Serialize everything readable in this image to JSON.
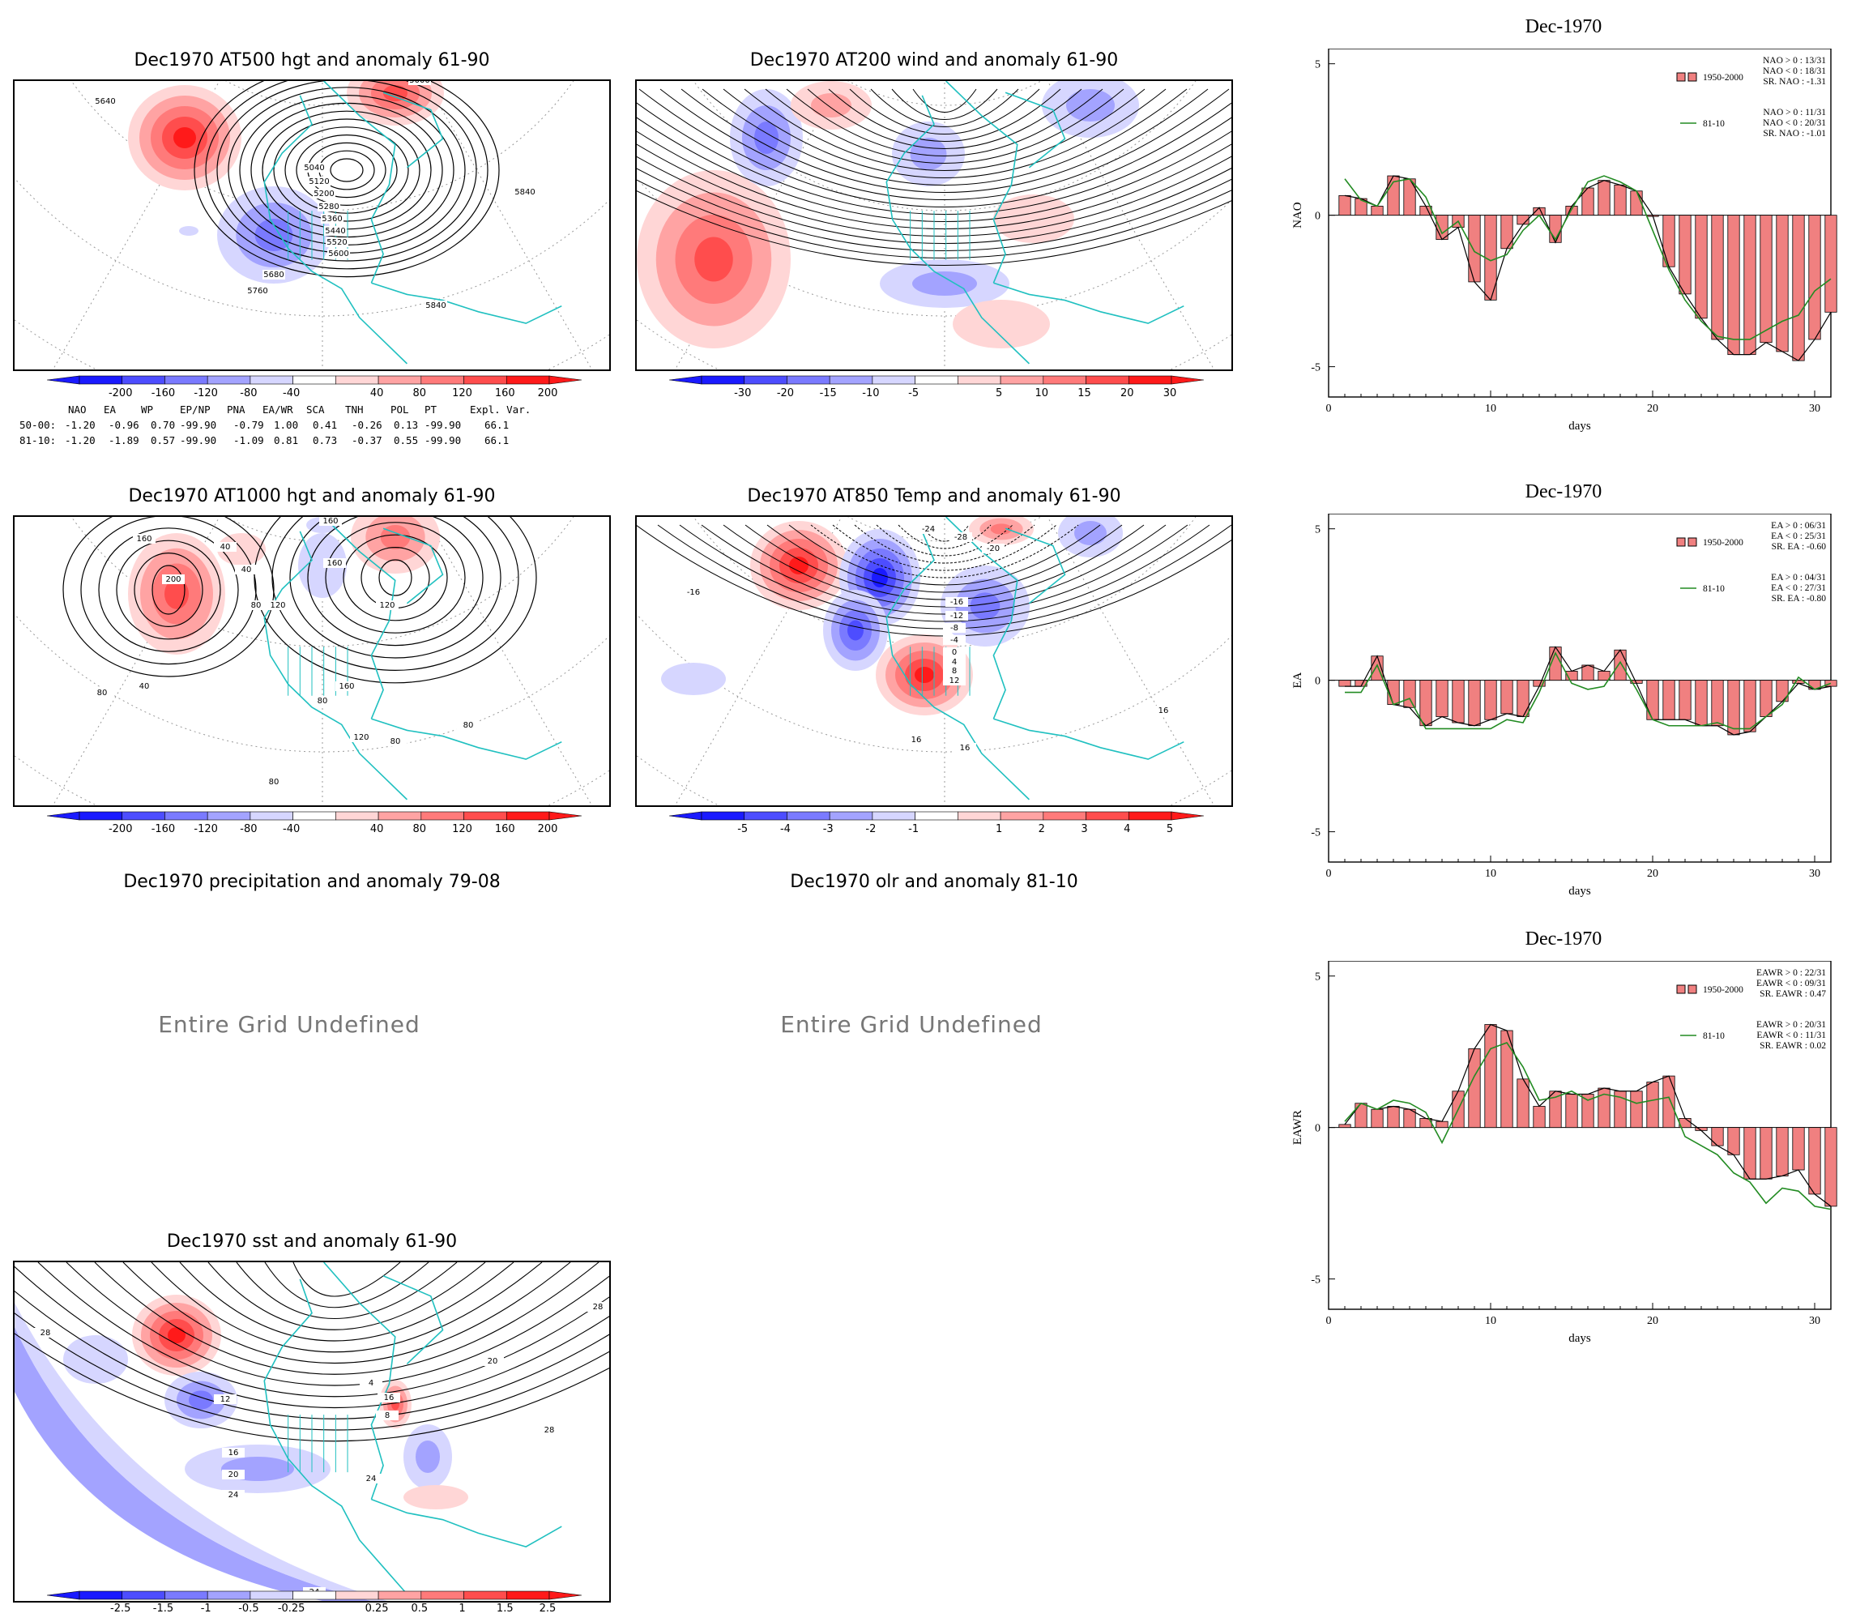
{
  "maps": [
    {
      "id": "z500",
      "title": "Dec1970 AT500 hgt and anomaly 61-90",
      "contour_labels": [
        "5640",
        "5040",
        "5120",
        "5200",
        "5280",
        "5360",
        "5440",
        "5520",
        "5600",
        "5680",
        "5760",
        "5840",
        "5840",
        "5000"
      ],
      "colorbar": [
        "-200",
        "-160",
        "-120",
        "-80",
        "-40",
        "40",
        "80",
        "120",
        "160",
        "200"
      ]
    },
    {
      "id": "w200",
      "title": "Dec1970 AT200 wind and anomaly 61-90",
      "contour_labels": [],
      "colorbar": [
        "-30",
        "-20",
        "-15",
        "-10",
        "-5",
        "5",
        "10",
        "15",
        "20",
        "30"
      ]
    },
    {
      "id": "z1000",
      "title": "Dec1970 AT1000 hgt and anomaly 61-90",
      "contour_labels": [
        "160",
        "200",
        "40",
        "40",
        "80",
        "120",
        "160",
        "160",
        "120",
        "80",
        "80",
        "40",
        "160",
        "120",
        "80",
        "80",
        "80"
      ],
      "colorbar": [
        "-200",
        "-160",
        "-120",
        "-80",
        "-40",
        "40",
        "80",
        "120",
        "160",
        "200"
      ]
    },
    {
      "id": "t850",
      "title": "Dec1970 AT850 Temp and anomaly 61-90",
      "contour_labels": [
        "-16",
        "-24",
        "-28",
        "-20",
        "-16",
        "-12",
        "-8",
        "-4",
        "0",
        "4",
        "8",
        "12",
        "16",
        "16",
        "16"
      ],
      "colorbar": [
        "-5",
        "-4",
        "-3",
        "-2",
        "-1",
        "1",
        "2",
        "3",
        "4",
        "5"
      ]
    },
    {
      "id": "precip",
      "title": "Dec1970 precipitation and anomaly 79-08",
      "undefined": "Entire Grid Undefined"
    },
    {
      "id": "olr",
      "title": "Dec1970 olr and anomaly 81-10",
      "undefined": "Entire Grid Undefined"
    },
    {
      "id": "sst",
      "title": "Dec1970 sst and anomaly 61-90",
      "contour_labels": [
        "28",
        "12",
        "16",
        "20",
        "24",
        "28",
        "20",
        "24",
        "28",
        "24",
        "8",
        "16",
        "4"
      ],
      "colorbar": [
        "-2.5",
        "-1.5",
        "-1",
        "-0.5",
        "-0.25",
        "0.25",
        "0.5",
        "1",
        "1.5",
        "2.5"
      ]
    }
  ],
  "teleconnection_table": {
    "headers": [
      "NAO",
      "EA",
      "WP",
      "EP/NP",
      "PNA",
      "EA/WR",
      "SCA",
      "TNH",
      "POL",
      "PT",
      "Expl. Var."
    ],
    "rows": [
      {
        "label": "50-00:",
        "values": [
          "-1.20",
          "-0.96",
          "0.70",
          "-99.90",
          "-0.79",
          "1.00",
          "0.41",
          "-0.26",
          "0.13",
          "-99.90",
          "66.1"
        ]
      },
      {
        "label": "81-10:",
        "values": [
          "-1.20",
          "-1.89",
          "0.57",
          "-99.90",
          "-1.09",
          "0.81",
          "0.73",
          "-0.37",
          "0.55",
          "-99.90",
          "66.1"
        ]
      }
    ]
  },
  "chart_data": [
    {
      "type": "bar",
      "title": "Dec-1970",
      "ylabel": "NAO",
      "xlabel": "days",
      "xlim": [
        0,
        31
      ],
      "ylim": [
        -6,
        5.5
      ],
      "x_ticks": [
        "0",
        "10",
        "20",
        "30"
      ],
      "y_ticks": [
        "-5",
        "0",
        "5"
      ],
      "series": [
        {
          "name": "1950-2000",
          "values": [
            0.65,
            0.55,
            0.3,
            1.3,
            1.2,
            0.3,
            -0.8,
            -0.4,
            -2.2,
            -2.8,
            -1.1,
            -0.3,
            0.25,
            -0.9,
            0.3,
            0.9,
            1.15,
            1.0,
            0.8,
            0.0,
            -1.7,
            -2.6,
            -3.4,
            -4.1,
            -4.6,
            -4.6,
            -4.2,
            -4.5,
            -4.8,
            -4.1,
            -3.2
          ]
        },
        {
          "name": "81-10",
          "values": [
            1.2,
            0.5,
            0.3,
            1.1,
            1.2,
            0.6,
            -0.6,
            -0.2,
            -1.2,
            -1.5,
            -1.3,
            -0.5,
            0.0,
            -0.8,
            0.2,
            1.1,
            1.3,
            1.1,
            0.8,
            -0.5,
            -1.8,
            -2.8,
            -3.5,
            -4.0,
            -4.1,
            -4.1,
            -3.8,
            -3.5,
            -3.3,
            -2.5,
            -2.1
          ]
        }
      ],
      "legend": {
        "bar_label": "1950-2000",
        "line_label": "81-10",
        "stats_1950": [
          "NAO > 0 : 13/31",
          "NAO < 0 : 18/31",
          "SR. NAO : -1.31"
        ],
        "stats_81": [
          "NAO > 0 : 11/31",
          "NAO < 0 : 20/31",
          "SR. NAO : -1.01"
        ]
      },
      "colors": {
        "bar": "#f08080",
        "line": "#228b22"
      }
    },
    {
      "type": "bar",
      "title": "Dec-1970",
      "ylabel": "EA",
      "xlabel": "days",
      "xlim": [
        0,
        31
      ],
      "ylim": [
        -6,
        5.5
      ],
      "x_ticks": [
        "0",
        "10",
        "20",
        "30"
      ],
      "y_ticks": [
        "-5",
        "0",
        "5"
      ],
      "series": [
        {
          "name": "1950-2000",
          "values": [
            -0.2,
            -0.2,
            0.8,
            -0.8,
            -0.9,
            -1.5,
            -1.2,
            -1.4,
            -1.5,
            -1.3,
            -1.1,
            -1.2,
            -0.2,
            1.1,
            0.3,
            0.5,
            0.3,
            1.0,
            -0.1,
            -1.3,
            -1.3,
            -1.3,
            -1.5,
            -1.5,
            -1.8,
            -1.7,
            -1.2,
            -0.7,
            -0.1,
            -0.3,
            -0.2
          ]
        },
        {
          "name": "81-10",
          "values": [
            -0.4,
            -0.4,
            0.5,
            -0.8,
            -0.6,
            -1.6,
            -1.6,
            -1.6,
            -1.6,
            -1.6,
            -1.3,
            -1.4,
            -0.4,
            0.9,
            -0.1,
            -0.3,
            -0.2,
            0.6,
            -0.3,
            -1.3,
            -1.5,
            -1.5,
            -1.5,
            -1.4,
            -1.6,
            -1.6,
            -1.2,
            -0.8,
            0.1,
            -0.3,
            -0.1
          ]
        }
      ],
      "legend": {
        "bar_label": "1950-2000",
        "line_label": "81-10",
        "stats_1950": [
          "EA > 0 : 06/31",
          "EA < 0 : 25/31",
          "SR. EA : -0.60"
        ],
        "stats_81": [
          "EA > 0 : 04/31",
          "EA < 0 : 27/31",
          "SR. EA : -0.80"
        ]
      },
      "colors": {
        "bar": "#f08080",
        "line": "#228b22"
      }
    },
    {
      "type": "bar",
      "title": "Dec-1970",
      "ylabel": "EAWR",
      "xlabel": "days",
      "xlim": [
        0,
        31
      ],
      "ylim": [
        -6,
        5.5
      ],
      "x_ticks": [
        "0",
        "10",
        "20",
        "30"
      ],
      "y_ticks": [
        "-5",
        "0",
        "5"
      ],
      "series": [
        {
          "name": "1950-2000",
          "values": [
            0.1,
            0.8,
            0.6,
            0.7,
            0.6,
            0.3,
            0.2,
            1.2,
            2.6,
            3.4,
            3.2,
            1.6,
            0.7,
            1.2,
            1.1,
            1.1,
            1.3,
            1.2,
            1.2,
            1.5,
            1.7,
            0.3,
            -0.1,
            -0.6,
            -0.9,
            -1.7,
            -1.7,
            -1.6,
            -1.4,
            -2.2,
            -2.6
          ]
        },
        {
          "name": "81-10",
          "values": [
            0.2,
            0.8,
            0.6,
            0.9,
            0.8,
            0.5,
            -0.5,
            0.6,
            1.7,
            2.6,
            2.8,
            2.0,
            0.9,
            1.0,
            1.2,
            0.9,
            1.1,
            1.0,
            0.8,
            0.9,
            1.0,
            -0.3,
            -0.6,
            -0.9,
            -1.5,
            -1.8,
            -2.5,
            -2.0,
            -2.1,
            -2.6,
            -2.7
          ]
        }
      ],
      "legend": {
        "bar_label": "1950-2000",
        "line_label": "81-10",
        "stats_1950": [
          "EAWR > 0 : 22/31",
          "EAWR < 0 : 09/31",
          "SR. EAWR : 0.47"
        ],
        "stats_81": [
          "EAWR > 0 : 20/31",
          "EAWR < 0 : 11/31",
          "SR. EAWR : 0.02"
        ]
      },
      "colors": {
        "bar": "#f08080",
        "line": "#228b22"
      }
    }
  ],
  "colors": {
    "neg": [
      "#1a1aff",
      "#4d4dff",
      "#7a7aff",
      "#a3a3ff",
      "#d6d6ff"
    ],
    "pos": [
      "#ffd6d6",
      "#ffa3a3",
      "#ff7a7a",
      "#ff4d4d",
      "#ff1a1a"
    ],
    "coast": "#20c0c0"
  }
}
